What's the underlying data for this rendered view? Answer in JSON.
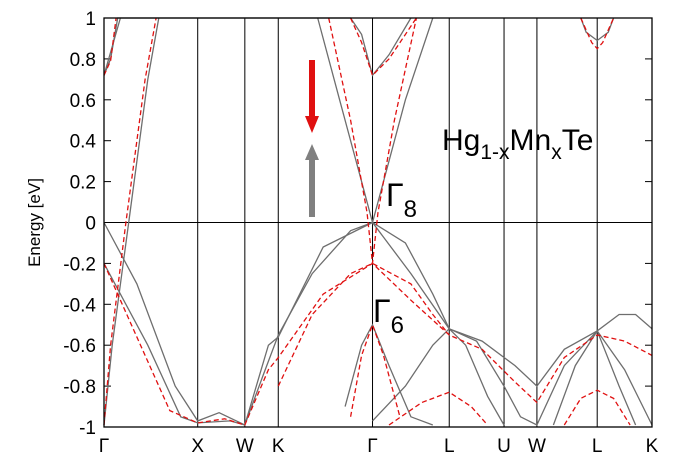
{
  "chart_data": {
    "type": "line",
    "ylabel": "Energy [eV]",
    "ylim": [
      -1,
      1
    ],
    "yticks": [
      "1",
      "0.8",
      "0.6",
      "0.4",
      "0.2",
      "0",
      "-0.2",
      "-0.4",
      "-0.6",
      "-0.8",
      "-1"
    ],
    "k_points": [
      {
        "label": "Γ",
        "pos": 0.0
      },
      {
        "label": "X",
        "pos": 0.171
      },
      {
        "label": "W",
        "pos": 0.257
      },
      {
        "label": "K",
        "pos": 0.318
      },
      {
        "label": "Γ",
        "pos": 0.49
      },
      {
        "label": "L",
        "pos": 0.63
      },
      {
        "label": "U",
        "pos": 0.73
      },
      {
        "label": "W",
        "pos": 0.79
      },
      {
        "label": "L",
        "pos": 0.9
      },
      {
        "label": "K",
        "pos": 1.0
      }
    ],
    "annotations": {
      "compound": {
        "base1": "Hg",
        "sub1": "1-x",
        "base2": "Mn",
        "sub2": "x",
        "base3": "Te"
      },
      "gamma8": {
        "base": "Γ",
        "sub": "8"
      },
      "gamma6": {
        "base": "Γ",
        "sub": "6"
      }
    },
    "legend": {
      "spin_down_color": "#e01010",
      "spin_up_color": "#808080"
    },
    "colors": {
      "spin_up": "#6e6e6e",
      "spin_down": "#e01010"
    },
    "series": [
      {
        "spin": "up",
        "points": [
          [
            0,
            0.72
          ],
          [
            0.012,
            0.8
          ],
          [
            0.025,
            1.0
          ],
          [
            0.45,
            1.0
          ],
          [
            0.47,
            0.92
          ],
          [
            0.49,
            0.72
          ],
          [
            0.52,
            0.82
          ],
          [
            0.56,
            1.0
          ]
        ]
      },
      {
        "spin": "up",
        "points": [
          [
            0.0,
            0.72
          ],
          [
            0.03,
            1.02
          ]
        ]
      },
      {
        "spin": "up",
        "points": [
          [
            0.0,
            -0.99
          ],
          [
            0.015,
            -0.6
          ],
          [
            0.045,
            0.0
          ],
          [
            0.08,
            0.7
          ],
          [
            0.1,
            1.05
          ]
        ]
      },
      {
        "spin": "up",
        "points": [
          [
            0.39,
            1.0
          ],
          [
            0.43,
            0.6
          ],
          [
            0.47,
            0.2
          ],
          [
            0.49,
            0.0
          ],
          [
            0.51,
            0.2
          ],
          [
            0.55,
            0.6
          ],
          [
            0.6,
            1.0
          ]
        ]
      },
      {
        "spin": "up",
        "points": [
          [
            0.0,
            0.0
          ],
          [
            0.06,
            -0.3
          ],
          [
            0.13,
            -0.8
          ],
          [
            0.171,
            -0.97
          ],
          [
            0.21,
            -0.93
          ],
          [
            0.257,
            -0.99
          ],
          [
            0.29,
            -0.75
          ],
          [
            0.318,
            -0.55
          ],
          [
            0.38,
            -0.25
          ],
          [
            0.45,
            -0.04
          ],
          [
            0.49,
            0.0
          ],
          [
            0.55,
            -0.1
          ],
          [
            0.6,
            -0.35
          ],
          [
            0.63,
            -0.52
          ],
          [
            0.68,
            -0.58
          ],
          [
            0.73,
            -0.8
          ],
          [
            0.76,
            -0.95
          ],
          [
            0.79,
            -0.99
          ],
          [
            0.84,
            -0.7
          ],
          [
            0.9,
            -0.53
          ],
          [
            0.95,
            -0.72
          ],
          [
            1.0,
            -0.99
          ]
        ]
      },
      {
        "spin": "up",
        "points": [
          [
            0.0,
            -0.2
          ],
          [
            0.08,
            -0.6
          ],
          [
            0.14,
            -0.95
          ],
          [
            0.171,
            -0.98
          ],
          [
            0.23,
            -0.97
          ],
          [
            0.257,
            -0.99
          ],
          [
            0.3,
            -0.6
          ],
          [
            0.318,
            -0.56
          ],
          [
            0.4,
            -0.12
          ],
          [
            0.49,
            0.0
          ],
          [
            0.56,
            -0.25
          ],
          [
            0.63,
            -0.52
          ],
          [
            0.69,
            -0.58
          ],
          [
            0.75,
            -0.7
          ],
          [
            0.79,
            -0.8
          ],
          [
            0.84,
            -0.62
          ],
          [
            0.9,
            -0.53
          ],
          [
            0.94,
            -0.45
          ],
          [
            0.97,
            -0.45
          ],
          [
            1.0,
            -0.52
          ]
        ]
      },
      {
        "spin": "up",
        "points": [
          [
            0.44,
            -0.9
          ],
          [
            0.47,
            -0.6
          ],
          [
            0.49,
            -0.5
          ],
          [
            0.52,
            -0.7
          ],
          [
            0.56,
            -0.95
          ],
          [
            0.6,
            -0.99
          ]
        ]
      },
      {
        "spin": "up",
        "points": [
          [
            0.49,
            -0.97
          ],
          [
            0.55,
            -0.8
          ],
          [
            0.6,
            -0.6
          ],
          [
            0.63,
            -0.52
          ],
          [
            0.66,
            -0.6
          ],
          [
            0.7,
            -0.85
          ],
          [
            0.73,
            -0.99
          ]
        ]
      },
      {
        "spin": "up",
        "points": [
          [
            0.82,
            -0.99
          ],
          [
            0.86,
            -0.7
          ],
          [
            0.9,
            -0.53
          ],
          [
            0.94,
            -0.8
          ],
          [
            0.97,
            -0.99
          ]
        ]
      },
      {
        "spin": "up",
        "points": [
          [
            0.87,
            1.0
          ],
          [
            0.88,
            0.93
          ],
          [
            0.9,
            0.89
          ],
          [
            0.92,
            0.93
          ],
          [
            0.93,
            1.0
          ]
        ]
      },
      {
        "spin": "down",
        "points": [
          [
            0,
            0.72
          ],
          [
            0.012,
            0.79
          ],
          [
            0.022,
            1.0
          ]
        ]
      },
      {
        "spin": "down",
        "points": [
          [
            0.0,
            -0.99
          ],
          [
            0.012,
            -0.6
          ],
          [
            0.04,
            0.0
          ],
          [
            0.075,
            0.7
          ],
          [
            0.095,
            1.05
          ]
        ]
      },
      {
        "spin": "down",
        "points": [
          [
            0.45,
            1.0
          ],
          [
            0.47,
            0.88
          ],
          [
            0.49,
            0.72
          ],
          [
            0.52,
            0.8
          ],
          [
            0.57,
            1.0
          ]
        ]
      },
      {
        "spin": "down",
        "points": [
          [
            0.41,
            1.0
          ],
          [
            0.45,
            0.5
          ],
          [
            0.48,
            0.05
          ],
          [
            0.49,
            -0.2
          ],
          [
            0.5,
            0.05
          ],
          [
            0.53,
            0.5
          ],
          [
            0.57,
            1.0
          ]
        ]
      },
      {
        "spin": "down",
        "points": [
          [
            0.0,
            -0.2
          ],
          [
            0.05,
            -0.5
          ],
          [
            0.12,
            -0.92
          ],
          [
            0.171,
            -0.98
          ],
          [
            0.22,
            -0.96
          ],
          [
            0.257,
            -0.99
          ],
          [
            0.3,
            -0.72
          ],
          [
            0.318,
            -0.66
          ],
          [
            0.4,
            -0.35
          ],
          [
            0.49,
            -0.2
          ],
          [
            0.56,
            -0.38
          ],
          [
            0.63,
            -0.55
          ],
          [
            0.69,
            -0.62
          ],
          [
            0.75,
            -0.78
          ],
          [
            0.79,
            -0.88
          ],
          [
            0.84,
            -0.66
          ],
          [
            0.9,
            -0.55
          ],
          [
            0.95,
            -0.58
          ],
          [
            1.0,
            -0.65
          ]
        ]
      },
      {
        "spin": "down",
        "points": [
          [
            0.318,
            -0.8
          ],
          [
            0.38,
            -0.45
          ],
          [
            0.45,
            -0.25
          ],
          [
            0.49,
            -0.2
          ],
          [
            0.56,
            -0.3
          ],
          [
            0.6,
            -0.45
          ],
          [
            0.63,
            -0.55
          ]
        ]
      },
      {
        "spin": "down",
        "points": [
          [
            0.45,
            -0.95
          ],
          [
            0.47,
            -0.65
          ],
          [
            0.49,
            -0.5
          ],
          [
            0.51,
            -0.65
          ],
          [
            0.54,
            -0.95
          ]
        ]
      },
      {
        "spin": "down",
        "points": [
          [
            0.52,
            -0.99
          ],
          [
            0.58,
            -0.88
          ],
          [
            0.63,
            -0.83
          ],
          [
            0.67,
            -0.9
          ],
          [
            0.7,
            -0.99
          ]
        ]
      },
      {
        "spin": "down",
        "points": [
          [
            0.84,
            -0.99
          ],
          [
            0.87,
            -0.86
          ],
          [
            0.9,
            -0.82
          ],
          [
            0.93,
            -0.86
          ],
          [
            0.96,
            -0.99
          ]
        ]
      },
      {
        "spin": "down",
        "points": [
          [
            0.87,
            1.0
          ],
          [
            0.89,
            0.88
          ],
          [
            0.9,
            0.85
          ],
          [
            0.91,
            0.88
          ],
          [
            0.93,
            1.0
          ]
        ]
      }
    ]
  }
}
